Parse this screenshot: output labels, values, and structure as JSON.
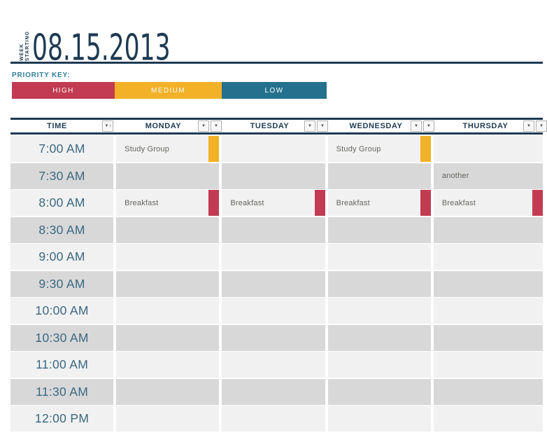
{
  "masthead": {
    "week_label_left": "WEEK",
    "week_label_right": "STARTING",
    "date": "08.15.2013"
  },
  "priority_key": {
    "label": "PRIORITY KEY:",
    "items": [
      {
        "label": "HIGH",
        "level": "high"
      },
      {
        "label": "MEDIUM",
        "level": "medium"
      },
      {
        "label": "LOW",
        "level": "low"
      }
    ]
  },
  "priority_colors": {
    "high": "#C23B52",
    "medium": "#F2B127",
    "low": "#24718D"
  },
  "colors": {
    "navy": "#1E3A52",
    "teal_label": "#2E7E99",
    "row_light": "#F1F1F1",
    "row_dark": "#D8D8D8",
    "time_text": "#3A6882",
    "event_text": "#64645F"
  },
  "icons": {
    "filter": "▼",
    "sort_ascending": "↑"
  },
  "table": {
    "headers": {
      "time": "TIME",
      "monday": "MONDAY",
      "tuesday": "TUESDAY",
      "wednesday": "WEDNESDAY",
      "thursday": "THURSDAY"
    },
    "rows": [
      {
        "time": "7:00 AM",
        "days": {
          "monday": {
            "text": "Study Group",
            "priority": "medium"
          },
          "wednesday": {
            "text": "Study Group",
            "priority": "medium"
          }
        }
      },
      {
        "time": "7:30 AM",
        "days": {
          "thursday": {
            "text": "another"
          }
        }
      },
      {
        "time": "8:00 AM",
        "days": {
          "monday": {
            "text": "Breakfast",
            "priority": "high"
          },
          "tuesday": {
            "text": "Breakfast",
            "priority": "high"
          },
          "wednesday": {
            "text": "Breakfast",
            "priority": "high"
          },
          "thursday": {
            "text": "Breakfast",
            "priority": "high"
          }
        }
      },
      {
        "time": "8:30 AM",
        "days": {}
      },
      {
        "time": "9:00 AM",
        "days": {}
      },
      {
        "time": "9:30 AM",
        "days": {}
      },
      {
        "time": "10:00 AM",
        "days": {}
      },
      {
        "time": "10:30 AM",
        "days": {}
      },
      {
        "time": "11:00 AM",
        "days": {}
      },
      {
        "time": "11:30 AM",
        "days": {}
      },
      {
        "time": "12:00 PM",
        "days": {}
      }
    ]
  }
}
